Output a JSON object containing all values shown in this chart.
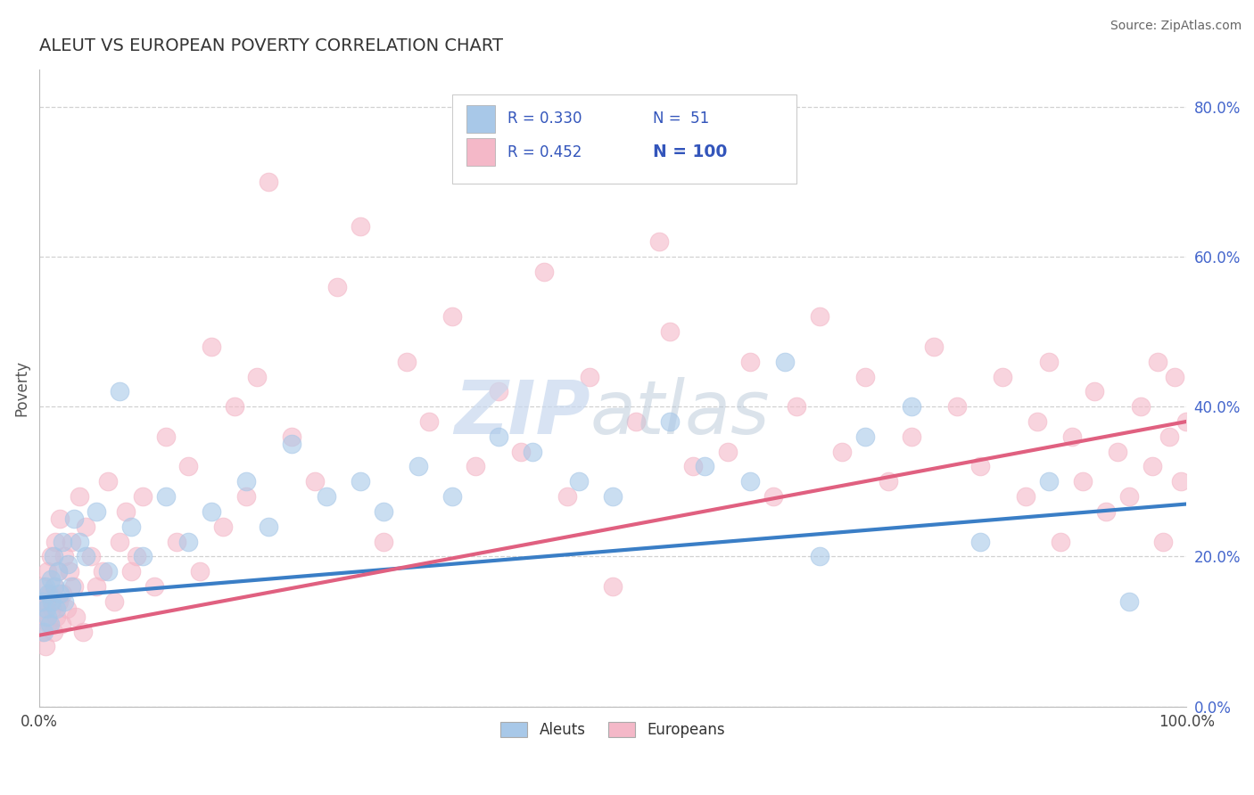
{
  "title": "ALEUT VS EUROPEAN POVERTY CORRELATION CHART",
  "source": "Source: ZipAtlas.com",
  "ylabel": "Poverty",
  "aleuts_R": 0.33,
  "aleuts_N": 51,
  "europeans_R": 0.452,
  "europeans_N": 100,
  "aleut_color": "#a8c8e8",
  "european_color": "#f4b8c8",
  "aleut_line_color": "#3a7ec6",
  "european_line_color": "#e06080",
  "background_color": "#ffffff",
  "grid_color": "#cccccc",
  "title_color": "#333333",
  "tick_color": "#4466cc",
  "legend_text_color": "#3355bb",
  "xlim": [
    0,
    100
  ],
  "ylim": [
    0,
    85
  ],
  "yticks": [
    0,
    20,
    40,
    60,
    80
  ],
  "aleut_line_start_y": 14.5,
  "aleut_line_end_y": 27.0,
  "european_line_start_y": 9.5,
  "european_line_end_y": 38.0,
  "aleuts_x": [
    0.2,
    0.4,
    0.5,
    0.6,
    0.7,
    0.8,
    0.9,
    1.0,
    1.1,
    1.2,
    1.3,
    1.5,
    1.6,
    1.8,
    2.0,
    2.2,
    2.5,
    2.8,
    3.0,
    3.5,
    4.0,
    5.0,
    6.0,
    7.0,
    8.0,
    9.0,
    11.0,
    13.0,
    15.0,
    18.0,
    20.0,
    22.0,
    25.0,
    28.0,
    30.0,
    33.0,
    36.0,
    40.0,
    43.0,
    47.0,
    50.0,
    55.0,
    58.0,
    62.0,
    65.0,
    68.0,
    72.0,
    76.0,
    82.0,
    88.0,
    95.0
  ],
  "aleuts_y": [
    14.0,
    10.0,
    16.0,
    13.0,
    12.0,
    15.0,
    11.0,
    17.0,
    14.0,
    20.0,
    16.0,
    13.0,
    18.0,
    15.0,
    22.0,
    14.0,
    19.0,
    16.0,
    25.0,
    22.0,
    20.0,
    26.0,
    18.0,
    42.0,
    24.0,
    20.0,
    28.0,
    22.0,
    26.0,
    30.0,
    24.0,
    35.0,
    28.0,
    30.0,
    26.0,
    32.0,
    28.0,
    36.0,
    34.0,
    30.0,
    28.0,
    38.0,
    32.0,
    30.0,
    46.0,
    20.0,
    36.0,
    40.0,
    22.0,
    30.0,
    14.0
  ],
  "europeans_x": [
    0.1,
    0.2,
    0.3,
    0.4,
    0.5,
    0.6,
    0.7,
    0.8,
    0.9,
    1.0,
    1.1,
    1.2,
    1.3,
    1.4,
    1.5,
    1.6,
    1.7,
    1.8,
    1.9,
    2.0,
    2.2,
    2.4,
    2.6,
    2.8,
    3.0,
    3.2,
    3.5,
    3.8,
    4.0,
    4.5,
    5.0,
    5.5,
    6.0,
    6.5,
    7.0,
    7.5,
    8.0,
    8.5,
    9.0,
    10.0,
    11.0,
    12.0,
    13.0,
    14.0,
    15.0,
    16.0,
    17.0,
    18.0,
    19.0,
    20.0,
    22.0,
    24.0,
    26.0,
    28.0,
    30.0,
    32.0,
    34.0,
    36.0,
    38.0,
    40.0,
    42.0,
    44.0,
    46.0,
    48.0,
    50.0,
    52.0,
    54.0,
    55.0,
    57.0,
    60.0,
    62.0,
    64.0,
    66.0,
    68.0,
    70.0,
    72.0,
    74.0,
    76.0,
    78.0,
    80.0,
    82.0,
    84.0,
    86.0,
    87.0,
    88.0,
    89.0,
    90.0,
    91.0,
    92.0,
    93.0,
    94.0,
    95.0,
    96.0,
    97.0,
    97.5,
    98.0,
    98.5,
    99.0,
    99.5,
    100.0
  ],
  "europeans_y": [
    13.0,
    10.0,
    16.0,
    12.0,
    8.0,
    14.0,
    18.0,
    11.0,
    15.0,
    20.0,
    13.0,
    10.0,
    16.0,
    22.0,
    12.0,
    18.0,
    14.0,
    25.0,
    11.0,
    15.0,
    20.0,
    13.0,
    18.0,
    22.0,
    16.0,
    12.0,
    28.0,
    10.0,
    24.0,
    20.0,
    16.0,
    18.0,
    30.0,
    14.0,
    22.0,
    26.0,
    18.0,
    20.0,
    28.0,
    16.0,
    36.0,
    22.0,
    32.0,
    18.0,
    48.0,
    24.0,
    40.0,
    28.0,
    44.0,
    70.0,
    36.0,
    30.0,
    56.0,
    64.0,
    22.0,
    46.0,
    38.0,
    52.0,
    32.0,
    42.0,
    34.0,
    58.0,
    28.0,
    44.0,
    16.0,
    38.0,
    62.0,
    50.0,
    32.0,
    34.0,
    46.0,
    28.0,
    40.0,
    52.0,
    34.0,
    44.0,
    30.0,
    36.0,
    48.0,
    40.0,
    32.0,
    44.0,
    28.0,
    38.0,
    46.0,
    22.0,
    36.0,
    30.0,
    42.0,
    26.0,
    34.0,
    28.0,
    40.0,
    32.0,
    46.0,
    22.0,
    36.0,
    44.0,
    30.0,
    38.0
  ]
}
